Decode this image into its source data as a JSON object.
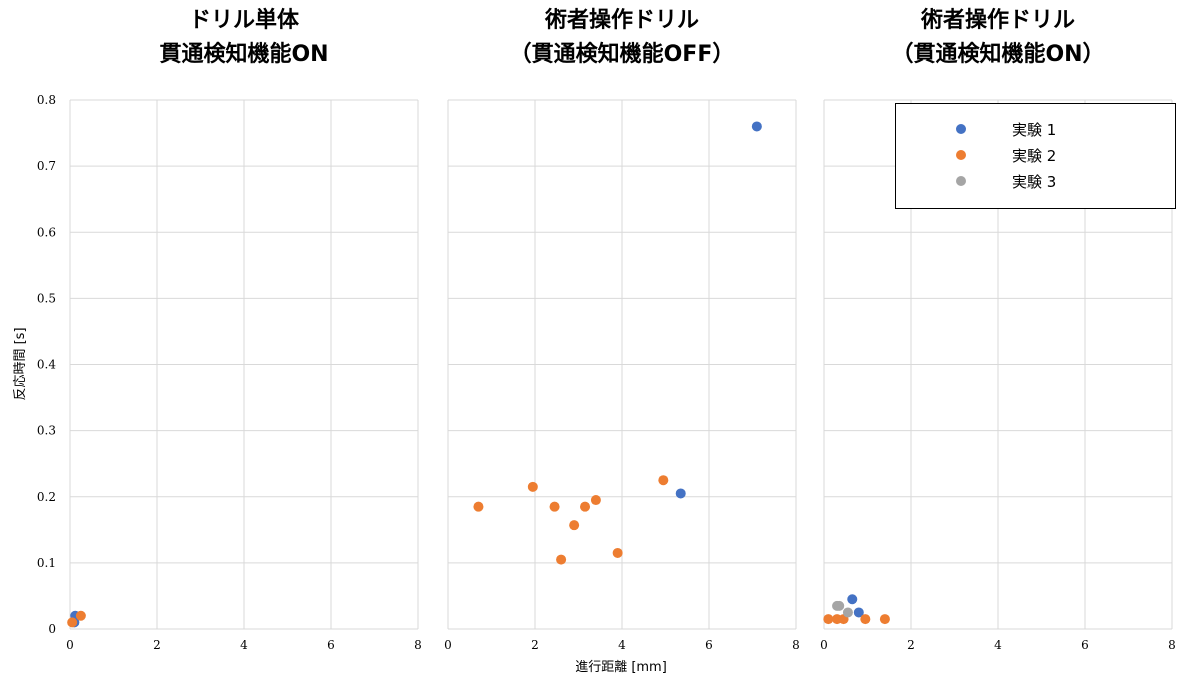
{
  "charts": [
    {
      "title_line1": "ドリル単体",
      "title_line2": "貫通検知機能ON"
    },
    {
      "title_line1": "術者操作ドリル",
      "title_line2": "（貫通検知機能OFF）"
    },
    {
      "title_line1": "術者操作ドリル",
      "title_line2": "（貫通検知機能ON）"
    }
  ],
  "ylabel": "反応時間 [s]",
  "xlabel": "進行距離 [mm]",
  "legend": {
    "placement": "top-right",
    "items": [
      {
        "label": "実験 1",
        "color": "#4472C4"
      },
      {
        "label": "実験 2",
        "color": "#ED7D31"
      },
      {
        "label": "実験 3",
        "color": "#A5A5A5"
      }
    ]
  },
  "chart_data": [
    {
      "type": "scatter",
      "title": "ドリル単体 貫通検知機能ON",
      "xlabel": "",
      "ylabel": "反応時間 [s]",
      "xlim": [
        0,
        8
      ],
      "ylim": [
        0,
        0.8
      ],
      "xticks": [
        "0",
        "2",
        "4",
        "6",
        "8"
      ],
      "yticks": [
        "0",
        "0.1",
        "0.2",
        "0.3",
        "0.4",
        "0.5",
        "0.6",
        "0.7",
        "0.8"
      ],
      "grid": true,
      "series": [
        {
          "name": "実験 1",
          "color": "#4472C4",
          "points": [
            [
              0.12,
              0.02
            ],
            [
              0.1,
              0.01
            ]
          ]
        },
        {
          "name": "実験 2",
          "color": "#ED7D31",
          "points": [
            [
              0.05,
              0.01
            ],
            [
              0.25,
              0.02
            ]
          ]
        },
        {
          "name": "実験 3",
          "color": "#A5A5A5",
          "points": []
        }
      ]
    },
    {
      "type": "scatter",
      "title": "術者操作ドリル （貫通検知機能OFF）",
      "xlabel": "進行距離 [mm]",
      "ylabel": "",
      "xlim": [
        0,
        8
      ],
      "ylim": [
        0,
        0.8
      ],
      "xticks": [
        "0",
        "2",
        "4",
        "6",
        "8"
      ],
      "yticks": [],
      "grid": true,
      "series": [
        {
          "name": "実験 1",
          "color": "#4472C4",
          "points": [
            [
              7.1,
              0.76
            ],
            [
              5.35,
              0.205
            ]
          ]
        },
        {
          "name": "実験 2",
          "color": "#ED7D31",
          "points": [
            [
              0.7,
              0.185
            ],
            [
              1.95,
              0.215
            ],
            [
              2.45,
              0.185
            ],
            [
              2.6,
              0.105
            ],
            [
              2.9,
              0.157
            ],
            [
              3.15,
              0.185
            ],
            [
              3.4,
              0.195
            ],
            [
              3.9,
              0.115
            ],
            [
              4.95,
              0.225
            ]
          ]
        },
        {
          "name": "実験 3",
          "color": "#A5A5A5",
          "points": []
        }
      ]
    },
    {
      "type": "scatter",
      "title": "術者操作ドリル （貫通検知機能ON）",
      "xlabel": "",
      "ylabel": "",
      "xlim": [
        0,
        8
      ],
      "ylim": [
        0,
        0.8
      ],
      "xticks": [
        "0",
        "2",
        "4",
        "6",
        "8"
      ],
      "yticks": [],
      "grid": true,
      "series": [
        {
          "name": "実験 1",
          "color": "#4472C4",
          "points": [
            [
              0.65,
              0.045
            ],
            [
              0.8,
              0.025
            ]
          ]
        },
        {
          "name": "実験 2",
          "color": "#ED7D31",
          "points": [
            [
              0.1,
              0.015
            ],
            [
              0.3,
              0.015
            ],
            [
              0.45,
              0.015
            ],
            [
              0.95,
              0.015
            ],
            [
              1.4,
              0.015
            ]
          ]
        },
        {
          "name": "実験 3",
          "color": "#A5A5A5",
          "points": [
            [
              0.3,
              0.035
            ],
            [
              0.35,
              0.035
            ],
            [
              0.55,
              0.025
            ]
          ]
        }
      ]
    }
  ]
}
